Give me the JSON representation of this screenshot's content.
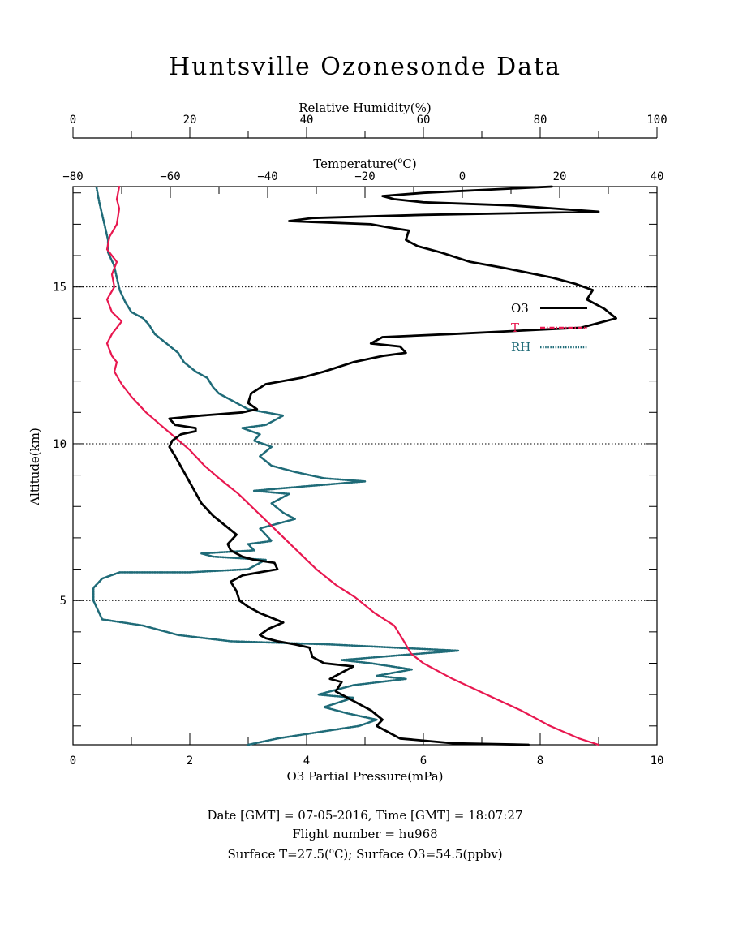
{
  "title": "Huntsville Ozonesonde Data",
  "footer": {
    "line1": "Date [GMT] = 07-05-2016,  Time [GMT] = 18:07:27",
    "line2": "Flight number = hu968",
    "line3_a": "Surface T=27.5(",
    "line3_sup": "o",
    "line3_b": "C); Surface O3=54.5(ppbv)"
  },
  "colors": {
    "o3": "#000000",
    "t": "#e8174f",
    "rh": "#1f6b78",
    "axis": "#000000"
  },
  "chart_data": {
    "type": "line",
    "y_axis": {
      "label": "Altitude(km)",
      "range": [
        0.4,
        18.2
      ],
      "ticks": [
        5,
        10,
        15
      ],
      "grid_at": [
        5,
        10,
        15
      ],
      "grid_style": "dotted"
    },
    "x_axes": {
      "o3": {
        "label": "O3 Partial Pressure(mPa)",
        "range": [
          0,
          10
        ],
        "ticks": [
          "0",
          "2",
          "4",
          "6",
          "8",
          "10"
        ]
      },
      "temperature": {
        "label_a": "Temperature(",
        "label_sup": "o",
        "label_b": "C)",
        "range": [
          -80,
          40
        ],
        "ticks": [
          "−80",
          "−60",
          "−40",
          "−20",
          "0",
          "20",
          "40"
        ]
      },
      "rh": {
        "label": "Relative Humidity(%)",
        "range": [
          0,
          100
        ],
        "ticks": [
          "0",
          "20",
          "40",
          "60",
          "80",
          "100"
        ]
      }
    },
    "legend": {
      "placement": "right-middle",
      "items": [
        {
          "key": "o3",
          "label": "O3"
        },
        {
          "key": "t",
          "label": "T"
        },
        {
          "key": "rh",
          "label": "RH"
        }
      ]
    },
    "series": [
      {
        "name": "O3",
        "axis": "o3",
        "points": [
          [
            7.8,
            0.4
          ],
          [
            6.5,
            0.45
          ],
          [
            5.6,
            0.6
          ],
          [
            5.4,
            0.8
          ],
          [
            5.2,
            1.0
          ],
          [
            5.3,
            1.2
          ],
          [
            5.1,
            1.5
          ],
          [
            4.9,
            1.7
          ],
          [
            4.7,
            1.9
          ],
          [
            4.5,
            2.1
          ],
          [
            4.6,
            2.4
          ],
          [
            4.4,
            2.5
          ],
          [
            4.6,
            2.7
          ],
          [
            4.8,
            2.9
          ],
          [
            4.3,
            3.0
          ],
          [
            4.1,
            3.2
          ],
          [
            4.05,
            3.5
          ],
          [
            3.8,
            3.6
          ],
          [
            3.5,
            3.7
          ],
          [
            3.3,
            3.8
          ],
          [
            3.2,
            3.9
          ],
          [
            3.35,
            4.1
          ],
          [
            3.6,
            4.3
          ],
          [
            3.2,
            4.6
          ],
          [
            3.0,
            4.8
          ],
          [
            2.85,
            5.0
          ],
          [
            2.8,
            5.3
          ],
          [
            2.7,
            5.6
          ],
          [
            2.9,
            5.8
          ],
          [
            3.2,
            5.9
          ],
          [
            3.5,
            6.0
          ],
          [
            3.45,
            6.2
          ],
          [
            3.1,
            6.3
          ],
          [
            2.9,
            6.4
          ],
          [
            2.7,
            6.6
          ],
          [
            2.65,
            6.8
          ],
          [
            2.8,
            7.1
          ],
          [
            2.6,
            7.4
          ],
          [
            2.4,
            7.7
          ],
          [
            2.2,
            8.1
          ],
          [
            2.05,
            8.6
          ],
          [
            1.9,
            9.1
          ],
          [
            1.75,
            9.6
          ],
          [
            1.65,
            9.9
          ],
          [
            1.7,
            10.1
          ],
          [
            1.85,
            10.3
          ],
          [
            2.1,
            10.4
          ],
          [
            2.1,
            10.5
          ],
          [
            1.75,
            10.6
          ],
          [
            1.65,
            10.8
          ],
          [
            2.2,
            10.9
          ],
          [
            2.9,
            11.0
          ],
          [
            3.15,
            11.1
          ],
          [
            3.0,
            11.3
          ],
          [
            3.05,
            11.6
          ],
          [
            3.3,
            11.9
          ],
          [
            3.9,
            12.1
          ],
          [
            4.3,
            12.3
          ],
          [
            4.8,
            12.6
          ],
          [
            5.3,
            12.8
          ],
          [
            5.7,
            12.9
          ],
          [
            5.6,
            13.1
          ],
          [
            5.1,
            13.2
          ],
          [
            5.3,
            13.4
          ],
          [
            6.5,
            13.5
          ],
          [
            8.7,
            13.7
          ],
          [
            9.3,
            14.0
          ],
          [
            9.1,
            14.3
          ],
          [
            8.8,
            14.6
          ],
          [
            8.9,
            14.9
          ],
          [
            8.6,
            15.1
          ],
          [
            8.2,
            15.3
          ],
          [
            7.4,
            15.6
          ],
          [
            6.8,
            15.8
          ],
          [
            6.3,
            16.1
          ],
          [
            5.9,
            16.3
          ],
          [
            5.7,
            16.5
          ],
          [
            5.75,
            16.8
          ],
          [
            5.4,
            16.9
          ],
          [
            5.1,
            17.0
          ],
          [
            3.7,
            17.1
          ],
          [
            4.1,
            17.2
          ],
          [
            6.0,
            17.3
          ],
          [
            9.0,
            17.4
          ],
          [
            7.5,
            17.6
          ],
          [
            6.0,
            17.7
          ],
          [
            5.5,
            17.8
          ],
          [
            5.3,
            17.9
          ],
          [
            6.0,
            18.0
          ],
          [
            8.2,
            18.2
          ]
        ]
      },
      {
        "name": "T",
        "axis": "temperature",
        "points": [
          [
            28.0,
            0.4
          ],
          [
            24.0,
            0.6
          ],
          [
            18.0,
            1.0
          ],
          [
            12.0,
            1.5
          ],
          [
            5.0,
            2.0
          ],
          [
            -2.0,
            2.5
          ],
          [
            -8.0,
            3.0
          ],
          [
            -10.5,
            3.3
          ],
          [
            -12.0,
            3.7
          ],
          [
            -14.0,
            4.2
          ],
          [
            -18.0,
            4.6
          ],
          [
            -22.0,
            5.1
          ],
          [
            -26.0,
            5.5
          ],
          [
            -30.0,
            6.0
          ],
          [
            -34.0,
            6.6
          ],
          [
            -38.0,
            7.2
          ],
          [
            -42.0,
            7.8
          ],
          [
            -46.0,
            8.4
          ],
          [
            -50.0,
            8.9
          ],
          [
            -53.0,
            9.3
          ],
          [
            -56.0,
            9.8
          ],
          [
            -59.0,
            10.2
          ],
          [
            -62.0,
            10.6
          ],
          [
            -65.0,
            11.0
          ],
          [
            -68.0,
            11.5
          ],
          [
            -70.0,
            11.9
          ],
          [
            -71.5,
            12.3
          ],
          [
            -71.0,
            12.6
          ],
          [
            -72.0,
            12.8
          ],
          [
            -73.0,
            13.2
          ],
          [
            -72.0,
            13.5
          ],
          [
            -70.0,
            13.9
          ],
          [
            -72.0,
            14.2
          ],
          [
            -73.0,
            14.6
          ],
          [
            -71.5,
            15.0
          ],
          [
            -72.0,
            15.4
          ],
          [
            -71.0,
            15.8
          ],
          [
            -73.0,
            16.2
          ],
          [
            -72.5,
            16.6
          ],
          [
            -71.0,
            17.0
          ],
          [
            -70.5,
            17.5
          ],
          [
            -71.0,
            17.8
          ],
          [
            -70.5,
            18.2
          ]
        ]
      },
      {
        "name": "RH",
        "axis": "rh",
        "points": [
          [
            30.0,
            0.4
          ],
          [
            35.0,
            0.6
          ],
          [
            42.0,
            0.8
          ],
          [
            49.0,
            1.0
          ],
          [
            52.0,
            1.2
          ],
          [
            47.0,
            1.4
          ],
          [
            43.0,
            1.6
          ],
          [
            48.0,
            1.9
          ],
          [
            42.0,
            2.0
          ],
          [
            48.0,
            2.3
          ],
          [
            57.0,
            2.5
          ],
          [
            52.0,
            2.6
          ],
          [
            58.0,
            2.8
          ],
          [
            51.0,
            3.0
          ],
          [
            46.0,
            3.1
          ],
          [
            59.0,
            3.3
          ],
          [
            66.0,
            3.4
          ],
          [
            55.0,
            3.5
          ],
          [
            44.0,
            3.6
          ],
          [
            27.0,
            3.7
          ],
          [
            18.0,
            3.9
          ],
          [
            12.0,
            4.2
          ],
          [
            5.0,
            4.4
          ],
          [
            4.5,
            4.6
          ],
          [
            3.5,
            5.0
          ],
          [
            3.5,
            5.4
          ],
          [
            5.0,
            5.7
          ],
          [
            8.0,
            5.9
          ],
          [
            20.0,
            5.9
          ],
          [
            30.0,
            6.0
          ],
          [
            33.0,
            6.3
          ],
          [
            24.0,
            6.4
          ],
          [
            22.0,
            6.5
          ],
          [
            31.0,
            6.6
          ],
          [
            30.0,
            6.8
          ],
          [
            34.0,
            6.9
          ],
          [
            33.0,
            7.1
          ],
          [
            32.0,
            7.3
          ],
          [
            38.0,
            7.6
          ],
          [
            36.0,
            7.8
          ],
          [
            34.0,
            8.1
          ],
          [
            37.0,
            8.4
          ],
          [
            31.0,
            8.5
          ],
          [
            37.0,
            8.6
          ],
          [
            50.0,
            8.8
          ],
          [
            43.0,
            8.9
          ],
          [
            38.0,
            9.1
          ],
          [
            34.0,
            9.3
          ],
          [
            32.0,
            9.6
          ],
          [
            34.0,
            9.9
          ],
          [
            31.0,
            10.1
          ],
          [
            32.0,
            10.3
          ],
          [
            29.0,
            10.5
          ],
          [
            33.0,
            10.6
          ],
          [
            36.0,
            10.9
          ],
          [
            30.0,
            11.1
          ],
          [
            28.0,
            11.3
          ],
          [
            25.0,
            11.6
          ],
          [
            24.0,
            11.8
          ],
          [
            23.0,
            12.1
          ],
          [
            21.0,
            12.3
          ],
          [
            19.0,
            12.6
          ],
          [
            18.0,
            12.9
          ],
          [
            16.0,
            13.2
          ],
          [
            14.0,
            13.5
          ],
          [
            13.0,
            13.8
          ],
          [
            12.0,
            14.0
          ],
          [
            10.0,
            14.2
          ],
          [
            9.0,
            14.5
          ],
          [
            8.0,
            14.9
          ],
          [
            7.5,
            15.3
          ],
          [
            7.0,
            15.7
          ],
          [
            6.0,
            16.1
          ],
          [
            6.0,
            16.5
          ],
          [
            5.5,
            16.9
          ],
          [
            5.0,
            17.3
          ],
          [
            4.5,
            17.7
          ],
          [
            4.0,
            18.2
          ]
        ]
      }
    ]
  }
}
